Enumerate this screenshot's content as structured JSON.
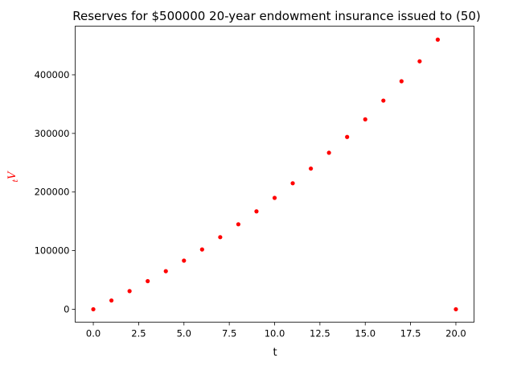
{
  "chart_data": {
    "type": "scatter",
    "title": "Reserves for $500000 20-year endowment insurance issued to (50)",
    "xlabel": "t",
    "ylabel": "tV",
    "ylabel_color": "#ff0000",
    "marker_color": "#ff0000",
    "xlim": [
      -1,
      21
    ],
    "ylim": [
      -22000,
      483000
    ],
    "x_ticks": [
      0,
      2.5,
      5,
      7.5,
      10,
      12.5,
      15,
      17.5,
      20
    ],
    "x_tick_labels": [
      "0.0",
      "2.5",
      "5.0",
      "7.5",
      "10.0",
      "12.5",
      "15.0",
      "17.5",
      "20.0"
    ],
    "y_ticks": [
      0,
      100000,
      200000,
      300000,
      400000
    ],
    "y_tick_labels": [
      "0",
      "100000",
      "200000",
      "300000",
      "400000"
    ],
    "grid": false,
    "legend": "none",
    "series": [
      {
        "x": [
          0,
          1,
          2,
          3,
          4,
          5,
          6,
          7,
          8,
          9,
          10,
          11,
          12,
          13,
          14,
          15,
          16,
          17,
          18,
          19,
          20
        ],
        "y": [
          0,
          15000,
          31000,
          48000,
          65000,
          83000,
          102000,
          123000,
          145000,
          167000,
          190000,
          215000,
          240000,
          267000,
          294000,
          324000,
          356000,
          389000,
          423000,
          460000,
          0
        ]
      }
    ]
  }
}
